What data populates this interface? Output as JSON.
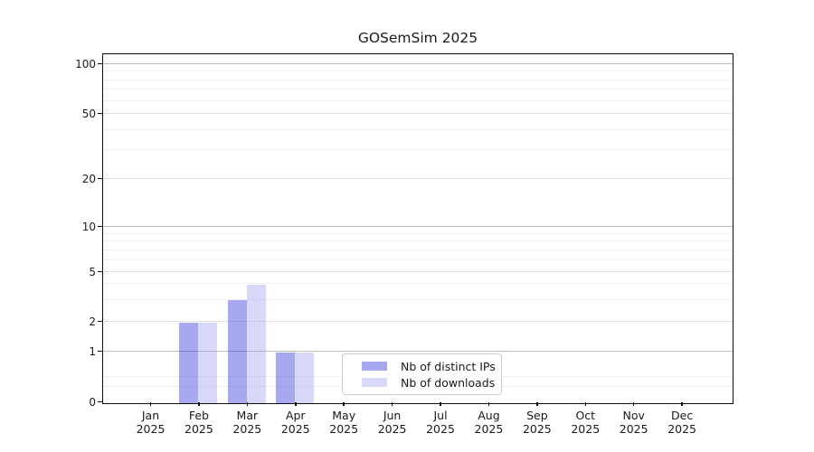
{
  "chart_title": "GOSemSim 2025",
  "chart_data": {
    "type": "bar",
    "title": "GOSemSim 2025",
    "background": "#ffffff",
    "x": {
      "categories": [
        "Jan",
        "Feb",
        "Mar",
        "Apr",
        "May",
        "Jun",
        "Jul",
        "Aug",
        "Sep",
        "Oct",
        "Nov",
        "Dec"
      ],
      "year_label": "2025"
    },
    "y": {
      "scale": "log-like",
      "tick_labels": [
        0,
        1,
        2,
        5,
        10,
        20,
        50,
        100
      ],
      "ylim": [
        0,
        100
      ],
      "gridline_values_strong": [
        1,
        10,
        100
      ],
      "gridline_values_light": [
        2,
        5,
        20,
        50
      ],
      "gridline_values_minor": [
        0.3,
        0.5,
        3,
        4,
        6,
        7,
        8,
        9,
        30,
        40,
        60,
        70,
        80,
        90
      ]
    },
    "series": [
      {
        "name": "Nb of distinct IPs",
        "color": "#a8a8f0",
        "values": [
          0,
          2,
          3,
          1,
          0,
          0,
          0,
          0,
          0,
          0,
          0,
          0
        ]
      },
      {
        "name": "Nb of downloads",
        "color": "#d8d8f8",
        "values": [
          0,
          2,
          4,
          1,
          0,
          0,
          0,
          0,
          0,
          0,
          0,
          0
        ]
      }
    ],
    "legend": {
      "position": "bottom-center"
    },
    "grid": true
  }
}
